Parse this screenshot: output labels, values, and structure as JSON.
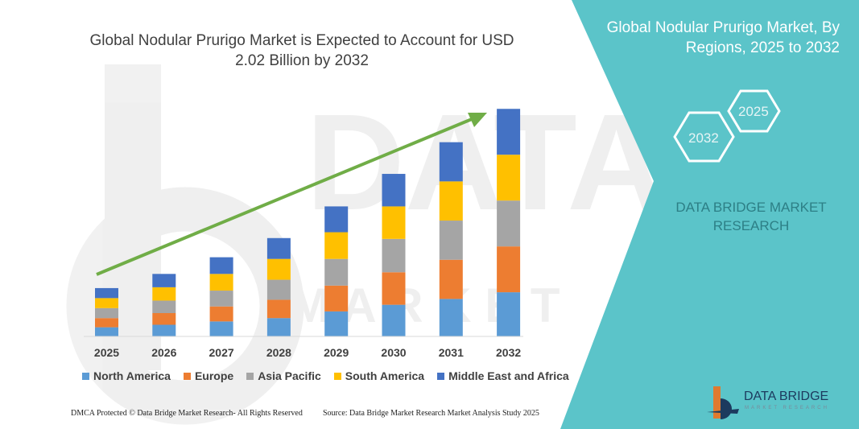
{
  "title_line1": "Global Nodular Prurigo Market is Expected to Account for USD",
  "title_line2": "2.02 Billion by 2032",
  "right_panel": {
    "title_line1": "Global Nodular Prurigo Market, By",
    "title_line2": "Regions, 2025 to 2032",
    "hex_a": "2025",
    "hex_b": "2032",
    "brand_line1": "DATA BRIDGE MARKET",
    "brand_line2": "RESEARCH"
  },
  "footer": {
    "left": "DMCA Protected © Data Bridge Market Research- All Rights Reserved",
    "right": "Source: Data Bridge Market Research Market Analysis Study 2025"
  },
  "logo": {
    "name": "DATA BRIDGE",
    "sub": "MARKET RESEARCH"
  },
  "colors": {
    "north_america": "#5B9BD5",
    "europe": "#ED7D31",
    "asia_pacific": "#A5A5A5",
    "south_america": "#FFC000",
    "mea": "#4472C4",
    "arrow": "#70AD47",
    "teal": "#5bc4c9"
  },
  "chart_data": {
    "type": "bar",
    "stacked": true,
    "categories": [
      "2025",
      "2026",
      "2027",
      "2028",
      "2029",
      "2030",
      "2031",
      "2032"
    ],
    "series": [
      {
        "name": "North America",
        "color": "#5B9BD5",
        "values": [
          11,
          14,
          18,
          22,
          30,
          38,
          45,
          53
        ]
      },
      {
        "name": "Europe",
        "color": "#ED7D31",
        "values": [
          11,
          14,
          18,
          22,
          31,
          39,
          47,
          55
        ]
      },
      {
        "name": "Asia Pacific",
        "color": "#A5A5A5",
        "values": [
          12,
          15,
          19,
          24,
          32,
          40,
          47,
          55
        ]
      },
      {
        "name": "South America",
        "color": "#FFC000",
        "values": [
          12,
          16,
          20,
          25,
          32,
          39,
          47,
          55
        ]
      },
      {
        "name": "Middle East and Africa",
        "color": "#4472C4",
        "values": [
          12,
          16,
          20,
          25,
          31,
          39,
          47,
          55
        ]
      }
    ],
    "ylim": [
      0,
      280
    ],
    "axes_visible": false,
    "grid": false,
    "legend_position": "bottom",
    "trend_arrow": true
  }
}
